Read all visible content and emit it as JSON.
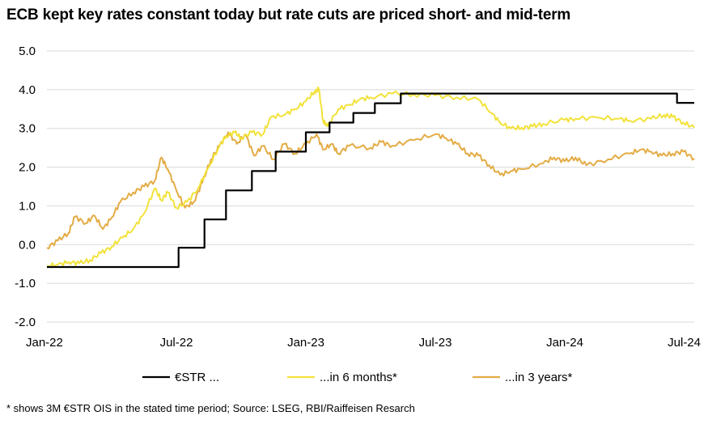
{
  "chart_data": {
    "type": "line",
    "title": "ECB kept key rates constant today but rate cuts are priced short- and mid-term",
    "footnote": "* shows 3M €STR OIS in the stated time period; Source: LSEG, RBI/Raiffeisen Resarch",
    "xlabel": "",
    "ylabel": "",
    "ylim": [
      -2.0,
      5.0
    ],
    "yticks": [
      "5.0",
      "4.0",
      "3.0",
      "2.0",
      "1.0",
      "0.0",
      "-1.0",
      "-2.0"
    ],
    "xticks": [
      "Jan-22",
      "Jul-22",
      "Jan-23",
      "Jul-23",
      "Jan-24",
      "Jul-24"
    ],
    "grid": true,
    "legend_position": "bottom",
    "series": [
      {
        "name": "€STR ...",
        "color": "#000000",
        "points": [
          [
            0,
            -0.58
          ],
          [
            6.1,
            -0.58
          ],
          [
            6.1,
            -0.08
          ],
          [
            7.3,
            -0.08
          ],
          [
            7.3,
            0.65
          ],
          [
            8.3,
            0.65
          ],
          [
            8.3,
            1.4
          ],
          [
            9.5,
            1.4
          ],
          [
            9.5,
            1.9
          ],
          [
            10.6,
            1.9
          ],
          [
            10.6,
            2.4
          ],
          [
            12.0,
            2.4
          ],
          [
            12.0,
            2.9
          ],
          [
            13.1,
            2.9
          ],
          [
            13.1,
            3.15
          ],
          [
            14.2,
            3.15
          ],
          [
            14.2,
            3.4
          ],
          [
            15.2,
            3.4
          ],
          [
            15.2,
            3.65
          ],
          [
            16.4,
            3.65
          ],
          [
            16.4,
            3.9
          ],
          [
            29.2,
            3.9
          ],
          [
            29.2,
            3.66
          ],
          [
            30.0,
            3.66
          ]
        ]
      },
      {
        "name": "...in 6 months*",
        "color": "#f2e23a",
        "points": [
          [
            0,
            -0.55
          ],
          [
            0.5,
            -0.52
          ],
          [
            1.0,
            -0.45
          ],
          [
            1.5,
            -0.48
          ],
          [
            2.0,
            -0.4
          ],
          [
            2.5,
            -0.22
          ],
          [
            3.0,
            -0.05
          ],
          [
            3.5,
            0.18
          ],
          [
            4.0,
            0.4
          ],
          [
            4.5,
            0.8
          ],
          [
            5.0,
            1.45
          ],
          [
            5.3,
            1.15
          ],
          [
            5.6,
            1.35
          ],
          [
            6.0,
            0.95
          ],
          [
            6.5,
            1.1
          ],
          [
            7.0,
            1.45
          ],
          [
            7.5,
            2.0
          ],
          [
            8.0,
            2.55
          ],
          [
            8.3,
            2.8
          ],
          [
            8.7,
            2.9
          ],
          [
            9.0,
            2.75
          ],
          [
            9.5,
            2.9
          ],
          [
            10.0,
            2.85
          ],
          [
            10.4,
            3.3
          ],
          [
            11.0,
            3.35
          ],
          [
            11.5,
            3.5
          ],
          [
            12.0,
            3.7
          ],
          [
            12.4,
            3.95
          ],
          [
            12.6,
            4.02
          ],
          [
            12.8,
            3.2
          ],
          [
            13.0,
            3.05
          ],
          [
            13.5,
            3.5
          ],
          [
            14.0,
            3.6
          ],
          [
            14.5,
            3.75
          ],
          [
            15.0,
            3.8
          ],
          [
            16.0,
            3.9
          ],
          [
            17.0,
            3.88
          ],
          [
            18.0,
            3.85
          ],
          [
            19.0,
            3.8
          ],
          [
            20.0,
            3.75
          ],
          [
            20.6,
            3.4
          ],
          [
            21.0,
            3.15
          ],
          [
            21.5,
            3.0
          ],
          [
            22.0,
            3.02
          ],
          [
            22.5,
            3.05
          ],
          [
            23.0,
            3.12
          ],
          [
            24.0,
            3.22
          ],
          [
            24.5,
            3.25
          ],
          [
            25.5,
            3.28
          ],
          [
            26.5,
            3.25
          ],
          [
            27.0,
            3.2
          ],
          [
            28.0,
            3.25
          ],
          [
            28.6,
            3.35
          ],
          [
            29.0,
            3.3
          ],
          [
            29.5,
            3.15
          ],
          [
            30.0,
            3.02
          ]
        ]
      },
      {
        "name": "...in 3 years*",
        "color": "#e3ac45",
        "points": [
          [
            0,
            -0.08
          ],
          [
            0.5,
            0.1
          ],
          [
            1.0,
            0.3
          ],
          [
            1.3,
            0.72
          ],
          [
            1.8,
            0.55
          ],
          [
            2.2,
            0.75
          ],
          [
            2.6,
            0.4
          ],
          [
            3.0,
            0.7
          ],
          [
            3.4,
            1.1
          ],
          [
            4.0,
            1.35
          ],
          [
            4.5,
            1.5
          ],
          [
            5.0,
            1.65
          ],
          [
            5.3,
            2.25
          ],
          [
            5.6,
            1.95
          ],
          [
            6.0,
            1.4
          ],
          [
            6.4,
            0.95
          ],
          [
            6.8,
            1.1
          ],
          [
            7.2,
            1.6
          ],
          [
            7.6,
            2.2
          ],
          [
            8.0,
            2.55
          ],
          [
            8.4,
            2.9
          ],
          [
            8.8,
            2.6
          ],
          [
            9.2,
            2.85
          ],
          [
            9.6,
            2.3
          ],
          [
            10.0,
            2.55
          ],
          [
            10.5,
            2.2
          ],
          [
            11.0,
            2.6
          ],
          [
            11.5,
            2.35
          ],
          [
            12.0,
            2.6
          ],
          [
            12.5,
            2.85
          ],
          [
            12.8,
            2.45
          ],
          [
            13.2,
            2.6
          ],
          [
            13.5,
            2.35
          ],
          [
            14.0,
            2.55
          ],
          [
            15.0,
            2.5
          ],
          [
            15.5,
            2.65
          ],
          [
            16.0,
            2.55
          ],
          [
            17.0,
            2.7
          ],
          [
            18.0,
            2.85
          ],
          [
            18.5,
            2.75
          ],
          [
            19.0,
            2.6
          ],
          [
            19.5,
            2.35
          ],
          [
            20.0,
            2.3
          ],
          [
            20.5,
            2.05
          ],
          [
            21.0,
            1.8
          ],
          [
            21.5,
            1.9
          ],
          [
            22.0,
            1.95
          ],
          [
            23.0,
            2.1
          ],
          [
            23.5,
            2.25
          ],
          [
            24.0,
            2.15
          ],
          [
            24.5,
            2.25
          ],
          [
            25.0,
            2.05
          ],
          [
            26.0,
            2.2
          ],
          [
            27.0,
            2.35
          ],
          [
            27.5,
            2.45
          ],
          [
            28.0,
            2.4
          ],
          [
            28.5,
            2.3
          ],
          [
            29.0,
            2.35
          ],
          [
            29.5,
            2.4
          ],
          [
            30.0,
            2.22
          ]
        ]
      }
    ]
  }
}
